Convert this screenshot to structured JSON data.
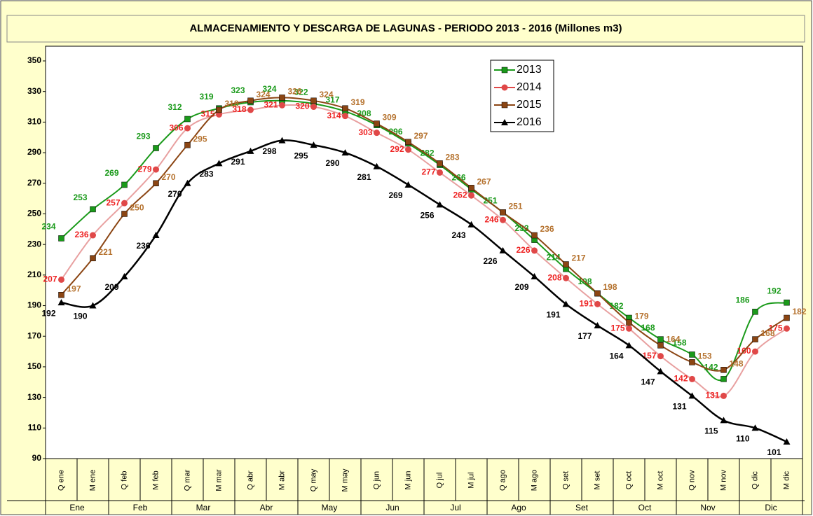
{
  "chart_data": {
    "type": "line",
    "title": "ALMACENAMIENTO  Y DESCARGA  DE LAGUNAS  - PERIODO 2013  - 2016  (Millones  m3)",
    "categories": [
      "Q ene",
      "M ene",
      "Q feb",
      "M feb",
      "Q mar",
      "M mar",
      "Q abr",
      "M abr",
      "Q may",
      "M may",
      "Q jun",
      "M jun",
      "Q jul",
      "M jul",
      "Q ago",
      "M ago",
      "Q set",
      "M set",
      "Q oct",
      "M oct",
      "Q nov",
      "M nov",
      "Q dic",
      "M dic"
    ],
    "groups": [
      "Ene",
      "Feb",
      "Mar",
      "Abr",
      "May",
      "Jun",
      "Jul",
      "Ago",
      "Set",
      "Oct",
      "Nov",
      "Dic"
    ],
    "series": [
      {
        "name": "2013",
        "color": "#1a9a1a",
        "marker": "square",
        "values": [
          234,
          253,
          269,
          293,
          312,
          319,
          323,
          324,
          322,
          317,
          308,
          296,
          282,
          266,
          251,
          233,
          214,
          198,
          182,
          168,
          158,
          142,
          186,
          192
        ]
      },
      {
        "name": "2014",
        "color": "#e04848",
        "marker": "circle",
        "values": [
          207,
          236,
          257,
          279,
          306,
          315,
          318,
          321,
          320,
          314,
          303,
          292,
          277,
          262,
          246,
          226,
          208,
          191,
          175,
          157,
          142,
          131,
          160,
          175
        ]
      },
      {
        "name": "2015",
        "color": "#8b4513",
        "marker": "square",
        "values": [
          197,
          221,
          250,
          270,
          295,
          318,
          324,
          326,
          324,
          319,
          309,
          297,
          283,
          267,
          251,
          236,
          217,
          198,
          179,
          164,
          153,
          148,
          168,
          182
        ]
      },
      {
        "name": "2016",
        "color": "#000000",
        "marker": "triangle",
        "values": [
          192,
          190,
          209,
          236,
          270,
          283,
          291,
          298,
          295,
          290,
          281,
          269,
          256,
          243,
          226,
          209,
          191,
          177,
          164,
          147,
          131,
          115,
          110,
          101
        ]
      }
    ],
    "ylim": [
      90,
      350
    ],
    "yticks": [
      90,
      110,
      130,
      150,
      170,
      190,
      210,
      230,
      250,
      270,
      290,
      310,
      330,
      350
    ],
    "grid": true,
    "legend": "top-center"
  }
}
